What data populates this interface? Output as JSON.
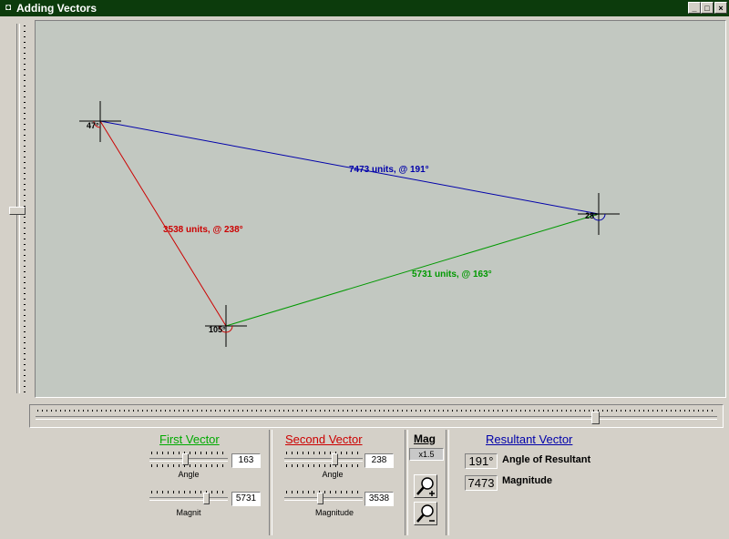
{
  "window": {
    "title": "Adding Vectors",
    "minimize_glyph": "_",
    "maximize_glyph": "□",
    "close_glyph": "×"
  },
  "canvas": {
    "background": "#c2c8c1",
    "vertices": [
      {
        "label": "47°"
      },
      {
        "label": "28°"
      },
      {
        "label": "105°"
      }
    ],
    "vectors": [
      {
        "label": "7473 units, @ 191°",
        "color": "#0000aa"
      },
      {
        "label": "3538 units, @ 238°",
        "color": "#cc0000"
      },
      {
        "label": "5731 units, @ 163°",
        "color": "#009900"
      }
    ]
  },
  "first_vector": {
    "heading": "First Vector",
    "color": "#00aa00",
    "angle_caption": "Angle",
    "angle_value": "163",
    "angle_level": 0.45,
    "magnitude_caption": "Magnit",
    "magnitude_value": "5731",
    "magnitude_level": 0.75
  },
  "second_vector": {
    "heading": "Second Vector",
    "color": "#cc0000",
    "angle_caption": "Angle",
    "angle_value": "238",
    "angle_level": 0.66,
    "magnitude_caption": "Magnitude",
    "magnitude_value": "3538",
    "magnitude_level": 0.45
  },
  "mag": {
    "heading": "Mag",
    "value": "x1.5"
  },
  "resultant": {
    "heading": "Resultant Vector",
    "color": "#0000aa",
    "angle_value": "191°",
    "angle_label": "Angle of Resultant",
    "magnitude_value": "7473",
    "magnitude_label": "Magnitude"
  }
}
